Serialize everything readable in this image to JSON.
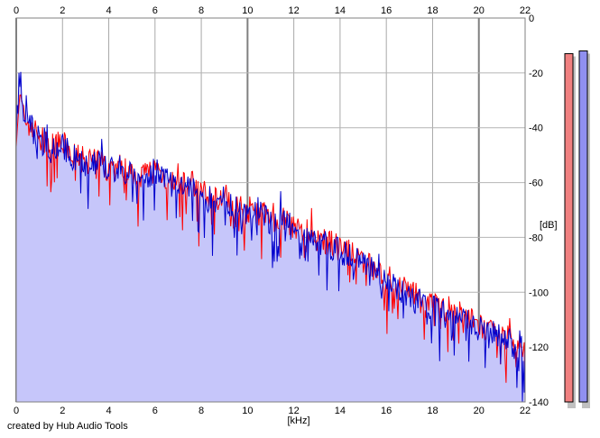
{
  "chart_data": {
    "type": "area",
    "xlabel": "[kHz]",
    "ylabel": "[dB]",
    "xlim": [
      0,
      22
    ],
    "ylim": [
      -140,
      0
    ],
    "x_ticks": [
      0,
      2,
      4,
      6,
      8,
      10,
      12,
      14,
      16,
      18,
      20,
      22
    ],
    "y_ticks": [
      0,
      -20,
      -40,
      -60,
      -80,
      -100,
      -120,
      -140
    ],
    "grid": true,
    "fill_color": "#c6c6fa",
    "series": [
      {
        "color": "#ff0000",
        "x": [
          0.0,
          0.1,
          0.2,
          0.3,
          0.5,
          0.8,
          1.0,
          1.5,
          2.0,
          2.5,
          3.0,
          3.5,
          4.0,
          4.5,
          5.0,
          5.5,
          6.0,
          6.5,
          7.0,
          7.5,
          8.0,
          8.5,
          9.0,
          9.5,
          10.0,
          10.5,
          11.0,
          11.5,
          12.0,
          12.5,
          13.0,
          13.5,
          14.0,
          14.5,
          15.0,
          15.5,
          16.0,
          16.5,
          17.0,
          17.5,
          18.0,
          18.5,
          19.0,
          19.5,
          20.0,
          20.5,
          21.0,
          21.5,
          22.0
        ],
        "values": [
          -42,
          -33,
          -30,
          -36,
          -38,
          -41,
          -44,
          -47,
          -46,
          -50,
          -52,
          -51,
          -55,
          -54,
          -56,
          -57,
          -55,
          -58,
          -62,
          -60,
          -63,
          -66,
          -65,
          -68,
          -70,
          -69,
          -74,
          -72,
          -76,
          -78,
          -80,
          -82,
          -84,
          -86,
          -88,
          -92,
          -95,
          -97,
          -100,
          -103,
          -104,
          -107,
          -108,
          -110,
          -112,
          -115,
          -116,
          -118,
          -120
        ]
      },
      {
        "color": "#0000cc",
        "x": [
          0.0,
          0.1,
          0.2,
          0.3,
          0.5,
          0.8,
          1.0,
          1.5,
          2.0,
          2.5,
          3.0,
          3.5,
          4.0,
          4.5,
          5.0,
          5.5,
          6.0,
          6.5,
          7.0,
          7.5,
          8.0,
          8.5,
          9.0,
          9.5,
          10.0,
          10.5,
          11.0,
          11.5,
          12.0,
          12.5,
          13.0,
          13.5,
          14.0,
          14.5,
          15.0,
          15.5,
          16.0,
          16.5,
          17.0,
          17.5,
          18.0,
          18.5,
          19.0,
          19.5,
          20.0,
          20.5,
          21.0,
          21.5,
          22.0
        ],
        "values": [
          -40,
          -30,
          -20,
          -35,
          -37,
          -42,
          -45,
          -48,
          -47,
          -51,
          -53,
          -52,
          -56,
          -55,
          -57,
          -58,
          -56,
          -59,
          -63,
          -61,
          -64,
          -67,
          -66,
          -69,
          -71,
          -70,
          -75,
          -73,
          -77,
          -79,
          -81,
          -83,
          -85,
          -87,
          -89,
          -93,
          -96,
          -98,
          -101,
          -104,
          -105,
          -108,
          -109,
          -111,
          -113,
          -116,
          -117,
          -119,
          -121
        ]
      }
    ],
    "meters": [
      {
        "color": "#ff0000",
        "level_db": -13
      },
      {
        "color": "#0000cc",
        "level_db": -12
      }
    ]
  },
  "footer": {
    "credit": "created by Hub Audio Tools"
  }
}
